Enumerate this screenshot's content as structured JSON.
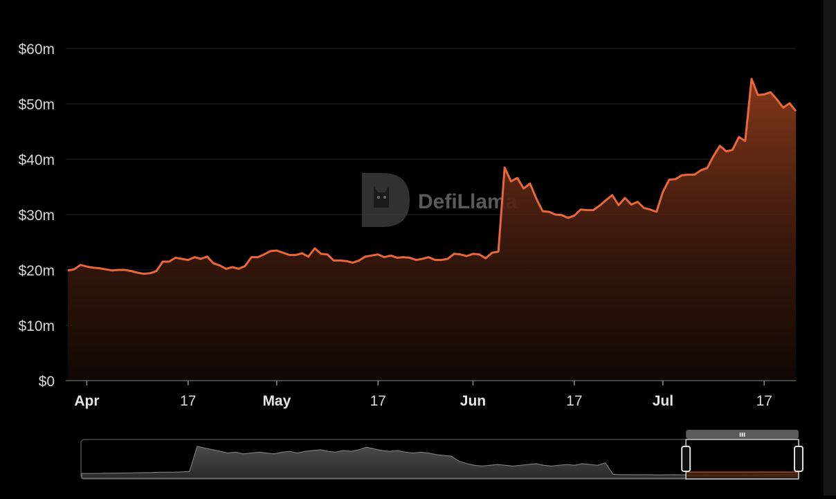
{
  "chart_data": {
    "type": "area",
    "title": "",
    "xlabel": "",
    "ylabel": "",
    "ylim": [
      0,
      60
    ],
    "y_ticks": [
      {
        "value": 0,
        "label": "$0"
      },
      {
        "value": 10,
        "label": "$10m"
      },
      {
        "value": 20,
        "label": "$20m"
      },
      {
        "value": 30,
        "label": "$30m"
      },
      {
        "value": 40,
        "label": "$40m"
      },
      {
        "value": 50,
        "label": "$50m"
      },
      {
        "value": 60,
        "label": "$60m"
      }
    ],
    "x_ticks": [
      {
        "day": 3,
        "label": "Apr",
        "month": true
      },
      {
        "day": 19,
        "label": "17",
        "month": false
      },
      {
        "day": 33,
        "label": "May",
        "month": true
      },
      {
        "day": 49,
        "label": "17",
        "month": false
      },
      {
        "day": 64,
        "label": "Jun",
        "month": true
      },
      {
        "day": 80,
        "label": "17",
        "month": false
      },
      {
        "day": 94,
        "label": "Jul",
        "month": true
      },
      {
        "day": 110,
        "label": "17",
        "month": false
      }
    ],
    "x_unit": "day index (Apr 1 = 3)",
    "grid": true,
    "legend": "none",
    "series": [
      {
        "x": [
          0,
          1,
          2,
          3,
          4,
          5,
          6,
          7,
          8,
          9,
          10,
          11,
          12,
          13,
          14,
          15,
          16,
          17,
          18,
          19,
          20,
          21,
          22,
          23,
          24,
          25,
          26,
          27,
          28,
          29,
          30,
          31,
          32,
          33,
          34,
          35,
          36,
          37,
          38,
          39,
          40,
          41,
          42,
          43,
          44,
          45,
          46,
          47,
          48,
          49,
          50,
          51,
          52,
          53,
          54,
          55,
          56,
          57,
          58,
          59,
          60,
          61,
          62,
          63,
          64,
          65,
          66,
          67,
          68,
          69,
          70,
          71,
          72,
          73,
          74,
          75,
          76,
          77,
          78,
          79,
          80,
          81,
          82,
          83,
          84,
          85,
          86,
          87,
          88,
          89,
          90,
          91,
          92,
          93,
          94,
          95,
          96,
          97,
          98,
          99,
          100,
          101,
          102,
          103,
          104,
          105,
          106,
          107,
          108,
          109,
          110,
          111,
          112,
          113,
          114,
          115
        ],
        "values": [
          19.9,
          20.1,
          20.9,
          20.6,
          20.4,
          20.3,
          20.1,
          19.9,
          20.0,
          20.0,
          19.8,
          19.5,
          19.3,
          19.4,
          19.8,
          21.5,
          21.5,
          22.2,
          22.0,
          21.8,
          22.3,
          22.0,
          22.4,
          21.2,
          20.8,
          20.2,
          20.5,
          20.2,
          20.7,
          22.3,
          22.3,
          22.8,
          23.4,
          23.5,
          23.1,
          22.7,
          22.7,
          23.0,
          22.4,
          23.9,
          22.9,
          22.8,
          21.7,
          21.7,
          21.6,
          21.3,
          21.7,
          22.4,
          22.6,
          22.8,
          22.3,
          22.6,
          22.2,
          22.3,
          22.2,
          21.8,
          22.0,
          22.3,
          21.8,
          21.8,
          22.0,
          22.9,
          22.8,
          22.5,
          22.9,
          22.8,
          22.1,
          23.1,
          23.3,
          38.5,
          36.0,
          36.6,
          34.7,
          35.6,
          32.9,
          30.6,
          30.5,
          30.0,
          29.9,
          29.4,
          29.8,
          30.9,
          30.8,
          30.8,
          31.6,
          32.6,
          33.5,
          31.7,
          33.0,
          31.8,
          32.3,
          31.2,
          30.9,
          30.5,
          34.1,
          36.3,
          36.4,
          37.1,
          37.2,
          37.2,
          38.0,
          38.4,
          40.6,
          42.4,
          41.4,
          41.7,
          44.0,
          43.3,
          54.5,
          51.6,
          51.7,
          52.1,
          50.8,
          49.3,
          50.1,
          48.7
        ]
      }
    ],
    "brush_overview": {
      "values": [
        5,
        5,
        5,
        5.2,
        5.3,
        5.5,
        5.6,
        5.8,
        6,
        6.2,
        6.4,
        6.5,
        6.6,
        6.8,
        7.5,
        38,
        36,
        34,
        32,
        30,
        31,
        29,
        30,
        31,
        30,
        29,
        31,
        32,
        30,
        32,
        33,
        34,
        32,
        31,
        33,
        32,
        34,
        37,
        35,
        33,
        32,
        33,
        31,
        30,
        31,
        30,
        28,
        27,
        26,
        20,
        17,
        15,
        14,
        15,
        16,
        15,
        14,
        15,
        16,
        17,
        15,
        14,
        15,
        16,
        15,
        17,
        16,
        15,
        18,
        4,
        3.5,
        3.5,
        3.4,
        3.5,
        3.4,
        3.3,
        3.4,
        3.5,
        3.3,
        3.2,
        3.3,
        3.4,
        3.2,
        3.3,
        3.2,
        3.3,
        3.4,
        3.3,
        3.5,
        3.6,
        3.6,
        3.7,
        3.9,
        4.2
      ],
      "selected_range": [
        0.843,
        1.0
      ],
      "handle_icon": "drag-handle-icon"
    },
    "watermark": {
      "text": "DefiLlama",
      "icon": "llama-logo-icon"
    },
    "colors": {
      "line": "#e8683a",
      "area_top": "#8a3a1c",
      "grid": "#262626",
      "brush_fill": "#3a3a3a",
      "brush_selected": "#a8501e"
    }
  }
}
